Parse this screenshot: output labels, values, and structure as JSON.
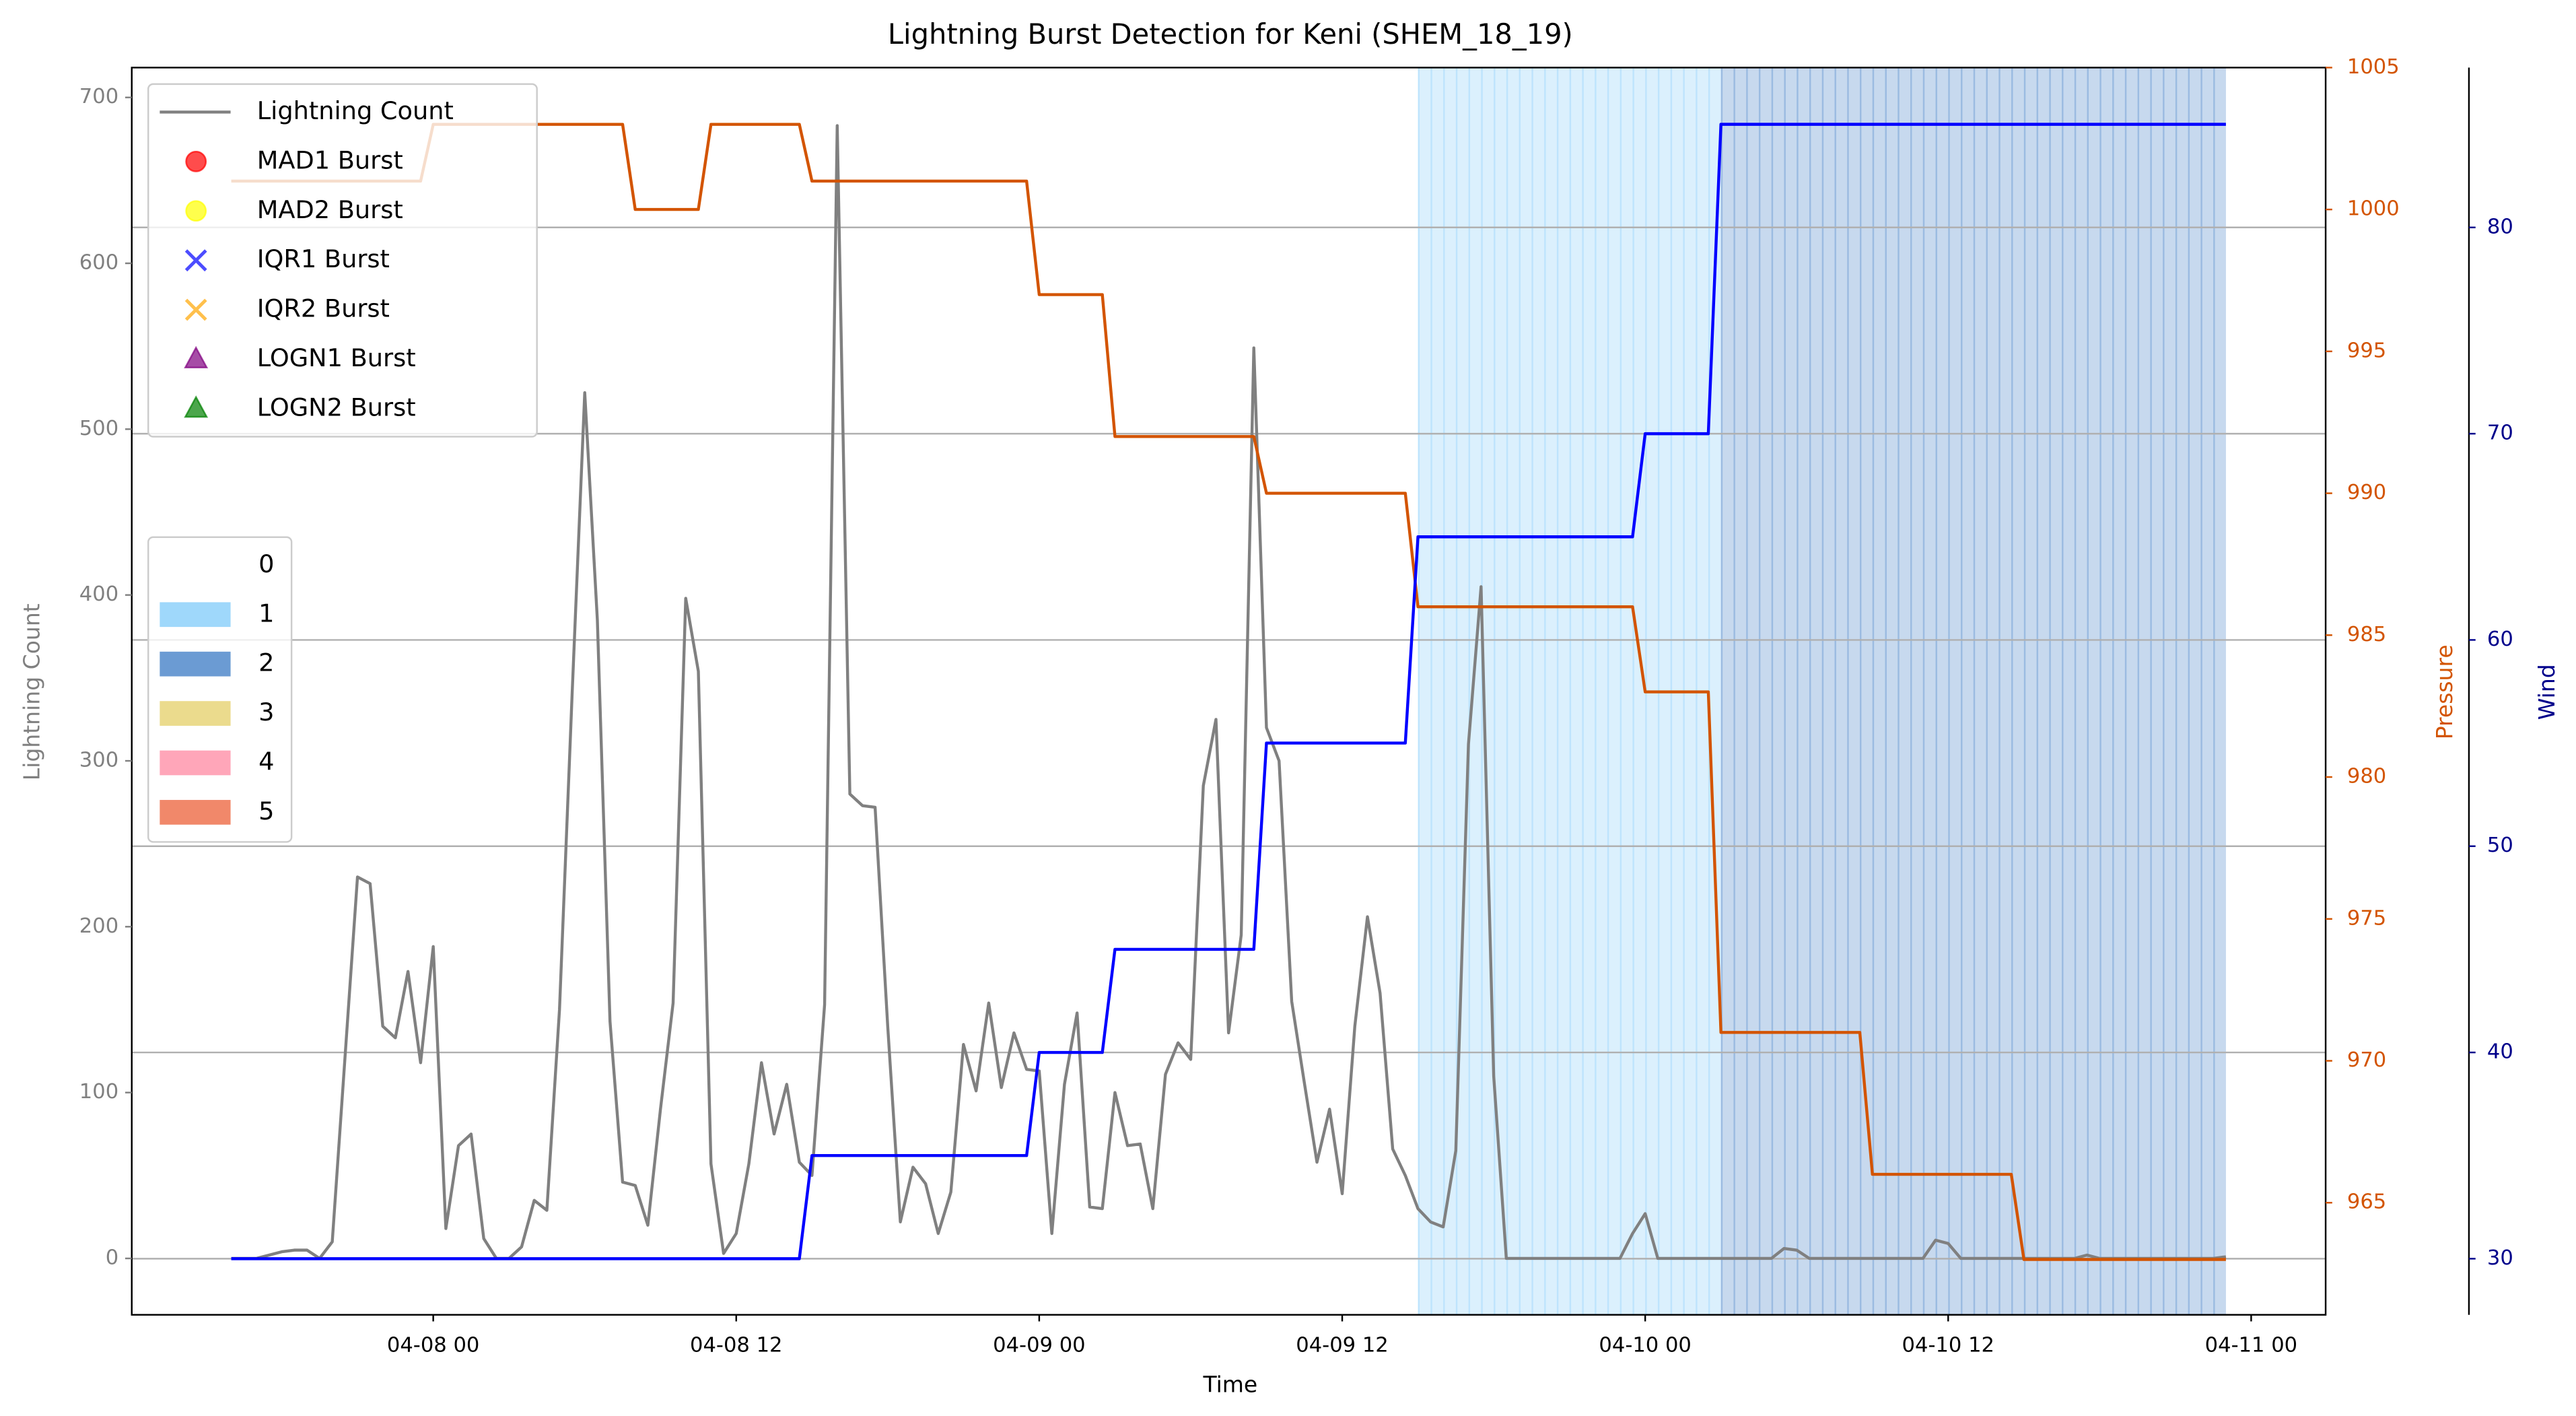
{
  "chart_data": {
    "type": "line",
    "title": "Lightning Burst Detection for Keni (SHEM_18_19)",
    "xlabel": "Time",
    "ylabel": "Lightning Count",
    "y2label": "Pressure",
    "y3label": "Wind",
    "x": [
      -8,
      -7.5,
      -7,
      -6.5,
      -6,
      -5.5,
      -5,
      -4.5,
      -4,
      -3.5,
      -3,
      -2.5,
      -2,
      -1.5,
      -1,
      -0.5,
      0,
      0.5,
      1,
      1.5,
      2,
      2.5,
      3,
      3.5,
      4,
      4.5,
      5,
      5.5,
      6,
      6.5,
      7,
      7.5,
      8,
      8.5,
      9,
      9.5,
      10,
      10.5,
      11,
      11.5,
      12,
      12.5,
      13,
      13.5,
      14,
      14.5,
      15,
      15.5,
      16,
      16.5,
      17,
      17.5,
      18,
      18.5,
      19,
      19.5,
      20,
      20.5,
      21,
      21.5,
      22,
      22.5,
      23,
      23.5,
      24,
      24.5,
      25,
      25.5,
      26,
      26.5,
      27,
      27.5,
      28,
      28.5,
      29,
      29.5,
      30,
      30.5,
      31,
      31.5,
      32,
      32.5,
      33,
      33.5,
      34,
      34.5,
      35,
      35.5,
      36,
      36.5,
      37,
      37.5,
      38,
      38.5,
      39,
      39.5,
      40,
      40.5,
      41,
      41.5,
      42,
      42.5,
      43,
      43.5,
      44,
      44.5,
      45,
      45.5,
      46,
      46.5,
      47,
      47.5,
      48,
      48.5,
      49,
      49.5,
      50,
      50.5,
      51,
      51.5,
      52,
      52.5,
      53,
      53.5,
      54,
      54.5,
      55,
      55.5,
      56,
      56.5,
      57,
      57.5,
      58,
      58.5,
      59,
      59.5,
      60,
      60.5,
      61,
      61.5,
      62,
      62.5,
      63,
      63.5,
      64,
      64.5,
      65,
      65.5,
      66,
      66.5,
      67,
      67.5,
      68,
      68.5,
      69,
      69.5,
      70,
      70.5,
      71
    ],
    "xlim": [
      -11.94,
      74.95
    ],
    "xticks": [
      {
        "value": 0,
        "label": "04-08 00"
      },
      {
        "value": 12,
        "label": "04-08 12"
      },
      {
        "value": 24,
        "label": "04-09 00"
      },
      {
        "value": 36,
        "label": "04-09 12"
      },
      {
        "value": 48,
        "label": "04-10 00"
      },
      {
        "value": 60,
        "label": "04-10 12"
      },
      {
        "value": 72,
        "label": "04-11 00"
      }
    ],
    "ylim": [
      -34,
      718
    ],
    "yticks": [
      0,
      100,
      200,
      300,
      400,
      500,
      600,
      700
    ],
    "y2lim": [
      961.05,
      1005
    ],
    "y2ticks": [
      965,
      970,
      975,
      980,
      985,
      990,
      995,
      1000,
      1005
    ],
    "y3lim": [
      27.28,
      87.75
    ],
    "y3ticks": [
      30,
      40,
      50,
      60,
      70,
      80
    ],
    "grid": true,
    "series": [
      {
        "name": "Lightning Count",
        "color": "#808080",
        "axis": "y",
        "values": [
          0,
          0,
          0,
          2,
          4,
          5,
          5,
          0,
          10,
          120,
          230,
          226,
          140,
          133,
          173,
          118,
          188,
          18,
          68,
          75,
          12,
          0,
          0,
          7,
          35,
          29,
          150,
          340,
          522,
          385,
          143,
          46,
          44,
          20,
          90,
          154,
          398,
          354,
          57,
          3,
          15,
          57,
          118,
          75,
          105,
          58,
          50,
          153,
          683,
          280,
          273,
          272,
          140,
          22,
          55,
          45,
          15,
          40,
          129,
          101,
          154,
          103,
          136,
          114,
          113,
          15,
          105,
          148,
          31,
          30,
          100,
          68,
          69,
          30,
          111,
          130,
          120,
          285,
          325,
          136,
          195,
          549,
          320,
          300,
          155,
          106,
          58,
          90,
          39,
          140,
          206,
          160,
          66,
          50,
          30,
          22,
          19,
          65,
          310,
          405,
          110,
          0,
          0,
          0,
          0,
          0,
          0,
          0,
          0,
          0,
          0,
          15,
          27,
          0,
          0,
          0,
          0,
          0,
          0,
          0,
          0,
          0,
          0,
          6,
          5,
          0,
          0,
          0,
          0,
          0,
          0,
          0,
          0,
          0,
          0,
          11,
          9,
          0,
          0,
          0,
          0,
          0,
          0,
          0,
          0,
          0,
          0,
          2,
          0,
          0,
          0,
          0,
          0,
          0,
          0,
          0,
          0,
          0,
          1
        ]
      },
      {
        "color": "#d35400",
        "axis": "y2",
        "x": [
          -8,
          -0.5,
          0,
          7.5,
          8,
          10.5,
          11,
          14.5,
          15,
          23.5,
          24,
          26.5,
          27,
          32.5,
          33,
          38.5,
          39,
          47.5,
          48,
          50.5,
          51,
          56.5,
          57,
          62.5,
          63,
          71
        ],
        "values": [
          1001,
          1001,
          1003,
          1003,
          1000,
          1000,
          1003,
          1003,
          1001,
          1001,
          997,
          997,
          992,
          992,
          990,
          990,
          986,
          986,
          983,
          983,
          971,
          971,
          966,
          966,
          963,
          963
        ]
      },
      {
        "color": "#0000ff",
        "axis": "y3",
        "x": [
          -8,
          14.5,
          15,
          23.5,
          24,
          26.5,
          27,
          32.5,
          33,
          38.5,
          39,
          47.5,
          48,
          50.5,
          51,
          71
        ],
        "values": [
          30,
          30,
          35,
          35,
          40,
          40,
          45,
          45,
          55,
          55,
          65,
          65,
          70,
          70,
          85,
          85
        ]
      }
    ],
    "burst_markers": [
      {
        "name": "MAD1 Burst",
        "color": "#ff0000",
        "marker": "circle"
      },
      {
        "name": "MAD2 Burst",
        "color": "#ffff00",
        "marker": "circle"
      },
      {
        "name": "IQR1 Burst",
        "color": "#0000ff",
        "marker": "x"
      },
      {
        "name": "IQR2 Burst",
        "color": "#ffa500",
        "marker": "x"
      },
      {
        "name": "LOGN1 Burst",
        "color": "#800080",
        "marker": "triangle"
      },
      {
        "name": "LOGN2 Burst",
        "color": "#008000",
        "marker": "triangle"
      }
    ],
    "legend": "upper left",
    "intensity_categories": [
      "0",
      "1",
      "2",
      "3",
      "4",
      "5"
    ],
    "intensity_colors": [
      "#ffffff",
      "#87cefa",
      "#4682c8",
      "#e6d270",
      "#ff90a8",
      "#ee6a45"
    ],
    "spans": [
      {
        "start": 39,
        "end": 51,
        "category": 1
      },
      {
        "start": 51,
        "end": 71,
        "category": 2
      }
    ]
  }
}
